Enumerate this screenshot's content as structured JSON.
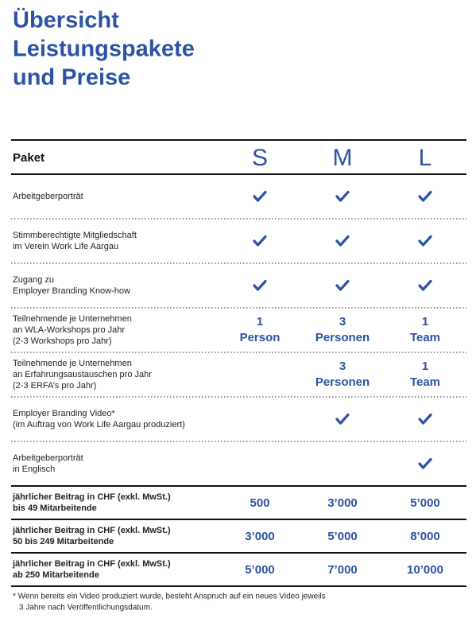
{
  "header": {
    "title": [
      "Übersicht",
      "Leistungspakete",
      "und Preise"
    ]
  },
  "table": {
    "columns": [
      "Paket",
      "S",
      "M",
      "L"
    ],
    "features": [
      {
        "label": [
          "Arbeitgeberporträt"
        ],
        "cells": [
          true,
          true,
          true
        ]
      },
      {
        "label": [
          "Stimmberechtigte Mitgliedschaft",
          "im Verein Work Life Aargau"
        ],
        "cells": [
          true,
          true,
          true
        ]
      },
      {
        "label": [
          "Zugang zu",
          "Employer Branding Know-how"
        ],
        "cells": [
          true,
          true,
          true
        ]
      },
      {
        "label": [
          "Teilnehmende je Unternehmen",
          "an WLA-Workshops pro Jahr",
          "(2-3 Workshops pro Jahr)"
        ],
        "cells": [
          [
            "1",
            "Person"
          ],
          [
            "3",
            "Personen"
          ],
          [
            "1",
            "Team"
          ]
        ]
      },
      {
        "label": [
          "Teilnehmende je Unternehmen",
          "an Erfahrungsaustauschen pro Jahr",
          "(2-3 ERFA’s pro Jahr)"
        ],
        "cells": [
          null,
          [
            "3",
            "Personen"
          ],
          [
            "1",
            "Team"
          ]
        ]
      },
      {
        "label": [
          "Employer Branding Video*",
          "(im Auftrag von Work Life Aargau produziert)"
        ],
        "cells": [
          null,
          true,
          true
        ]
      },
      {
        "label": [
          "Arbeitgeberporträt",
          "in Englisch"
        ],
        "cells": [
          null,
          null,
          true
        ]
      }
    ],
    "prices": [
      {
        "label": [
          "jährlicher Beitrag in CHF (exkl. MwSt.)",
          "bis 49 Mitarbeitende"
        ],
        "cells": [
          "500",
          "3’000",
          "5’000"
        ]
      },
      {
        "label": [
          "jährlicher Beitrag  in CHF (exkl. MwSt.)",
          "50 bis 249 Mitarbeitende"
        ],
        "cells": [
          "3’000",
          "5’000",
          "8’000"
        ]
      },
      {
        "label": [
          "jährlicher Beitrag in CHF (exkl. MwSt.)",
          "ab 250 Mitarbeitende"
        ],
        "cells": [
          "5’000",
          "7’000",
          "10’000"
        ]
      }
    ]
  },
  "footnote": [
    "* Wenn bereits ein Video produziert wurde, besteht Anspruch auf ein neues Video jeweils",
    "3 Jahre nach Veröffentlichungsdatum."
  ]
}
